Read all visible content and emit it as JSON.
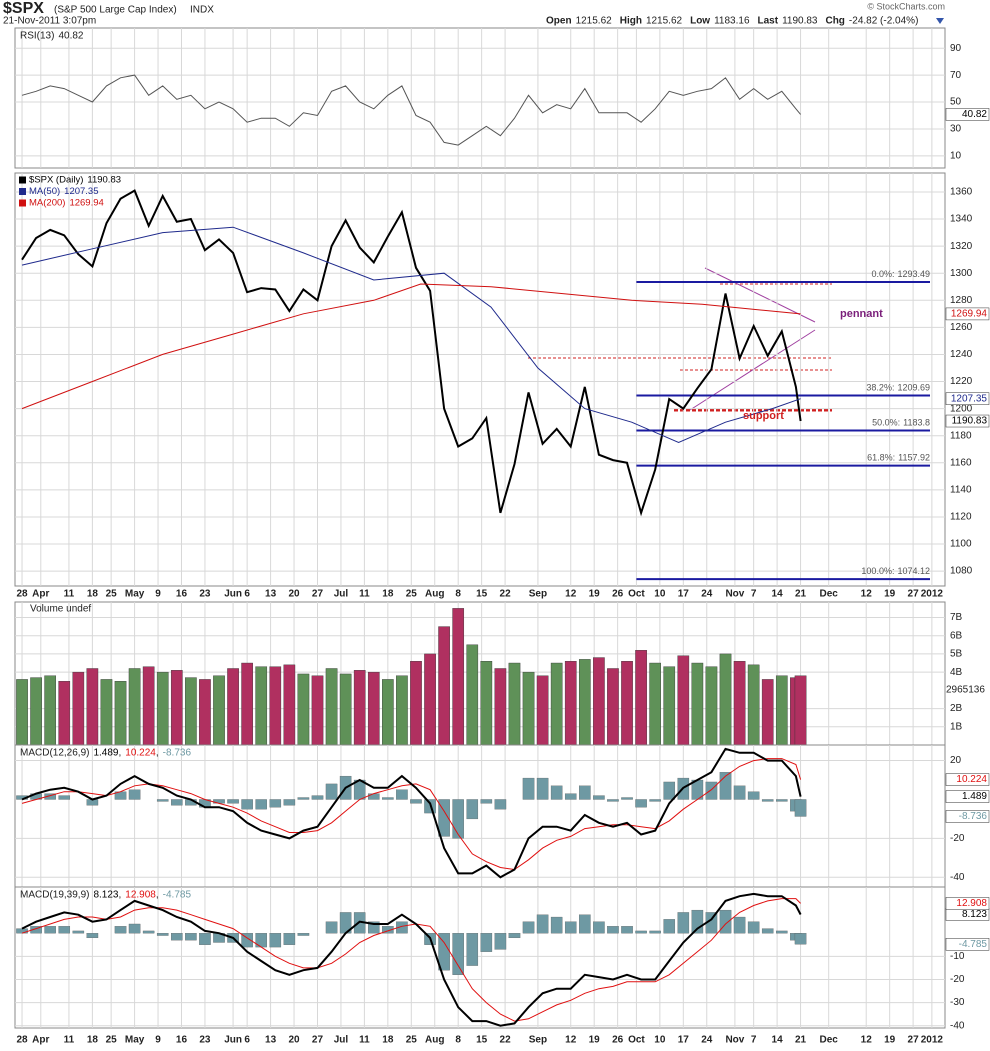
{
  "header": {
    "symbol": "$SPX",
    "name": "(S&P 500 Large Cap Index)",
    "exchange": "INDX",
    "date": "21-Nov-2011 3:07pm",
    "watermark": "© StockCharts.com",
    "quote": [
      {
        "label": "Open",
        "value": 1215.62
      },
      {
        "label": "High",
        "value": 1215.62
      },
      {
        "label": "Low",
        "value": 1183.16
      },
      {
        "label": "Last",
        "value": 1190.83
      },
      {
        "label": "Chg",
        "value": "-24.82 (-2.04%)"
      }
    ]
  },
  "chart_data": {
    "type": "stock",
    "xlim": [
      -1.5,
      196.8
    ],
    "xticks": [
      {
        "value": 0,
        "label": "28"
      },
      {
        "value": 4,
        "label": "Apr"
      },
      {
        "value": 10,
        "label": "11"
      },
      {
        "value": 15,
        "label": "18"
      },
      {
        "value": 19,
        "label": "25"
      },
      {
        "value": 24,
        "label": "May"
      },
      {
        "value": 29,
        "label": "9"
      },
      {
        "value": 34,
        "label": "16"
      },
      {
        "value": 39,
        "label": "23"
      },
      {
        "value": 45,
        "label": "Jun"
      },
      {
        "value": 48,
        "label": "6"
      },
      {
        "value": 53,
        "label": "13"
      },
      {
        "value": 58,
        "label": "20"
      },
      {
        "value": 63,
        "label": "27"
      },
      {
        "value": 68,
        "label": "Jul"
      },
      {
        "value": 73,
        "label": "11"
      },
      {
        "value": 78,
        "label": "18"
      },
      {
        "value": 83,
        "label": "25"
      },
      {
        "value": 88,
        "label": "Aug"
      },
      {
        "value": 93,
        "label": "8"
      },
      {
        "value": 98,
        "label": "15"
      },
      {
        "value": 103,
        "label": "22"
      },
      {
        "value": 110,
        "label": "Sep"
      },
      {
        "value": 117,
        "label": "12"
      },
      {
        "value": 122,
        "label": "19"
      },
      {
        "value": 127,
        "label": "26"
      },
      {
        "value": 131,
        "label": "Oct"
      },
      {
        "value": 136,
        "label": "10"
      },
      {
        "value": 141,
        "label": "17"
      },
      {
        "value": 146,
        "label": "24"
      },
      {
        "value": 152,
        "label": "Nov"
      },
      {
        "value": 156,
        "label": "7"
      },
      {
        "value": 161,
        "label": "14"
      },
      {
        "value": 166,
        "label": "21"
      },
      {
        "value": 172,
        "label": "Dec"
      },
      {
        "value": 180,
        "label": "12"
      },
      {
        "value": 185,
        "label": "19"
      },
      {
        "value": 190,
        "label": "27"
      },
      {
        "value": 194,
        "label": "2012"
      }
    ],
    "x": [
      0,
      3,
      6,
      9,
      12,
      15,
      18,
      21,
      24,
      27,
      30,
      33,
      36,
      39,
      42,
      45,
      48,
      51,
      54,
      57,
      60,
      63,
      66,
      69,
      72,
      75,
      78,
      81,
      84,
      87,
      90,
      93,
      96,
      99,
      102,
      105,
      108,
      111,
      114,
      117,
      120,
      123,
      126,
      129,
      132,
      135,
      138,
      141,
      144,
      147,
      150,
      153,
      156,
      159,
      162,
      165,
      166
    ],
    "panels": [
      {
        "type": "line",
        "legend": "RSI(13)",
        "ylim": [
          1,
          105
        ],
        "yticks": [
          10,
          30,
          50,
          70,
          90
        ],
        "series": [
          {
            "color": "#555",
            "values": [
              55,
              58,
              62,
              60,
              55,
              50,
              62,
              68,
              70,
              55,
              62,
              52,
              55,
              45,
              50,
              45,
              35,
              38,
              38,
              32,
              42,
              40,
              58,
              62,
              50,
              45,
              55,
              62,
              40,
              35,
              20,
              18,
              25,
              32,
              25,
              38,
              55,
              42,
              48,
              45,
              60,
              42,
              42,
              42,
              35,
              45,
              58,
              55,
              58,
              60,
              68,
              52,
              60,
              52,
              58,
              45,
              40.82
            ]
          }
        ]
      },
      {
        "type": "line",
        "ylim": [
          1069,
          1374
        ],
        "yticks": [
          1080,
          1100,
          1120,
          1140,
          1160,
          1180,
          1200,
          1220,
          1240,
          1260,
          1280,
          1300,
          1320,
          1340,
          1360
        ],
        "series": [
          {
            "name": "$SPX (Daily)",
            "color": "#000000",
            "values": [
              1310,
              1326,
              1332,
              1328,
              1314,
              1305,
              1337,
              1355,
              1361,
              1335,
              1357,
              1338,
              1340,
              1317,
              1325,
              1315,
              1286,
              1289,
              1288,
              1272,
              1288,
              1280,
              1320,
              1339,
              1319,
              1308,
              1327,
              1345,
              1304,
              1287,
              1200,
              1172,
              1178,
              1193,
              1123,
              1159,
              1212,
              1174,
              1185,
              1172,
              1216,
              1166,
              1162,
              1160,
              1123,
              1155,
              1207,
              1200,
              1215,
              1229,
              1285,
              1237,
              1261,
              1239,
              1257,
              1216,
              1190.83
            ]
          },
          {
            "name": "MA(50)",
            "color": "#1f2a8c",
            "x": [
              0,
              15,
              30,
              45,
              60,
              75,
              90,
              100,
              110,
              120,
              130,
              140,
              150,
              160,
              166
            ],
            "values": [
              1306,
              1318,
              1330,
              1334,
              1315,
              1295,
              1300,
              1275,
              1230,
              1200,
              1190,
              1175,
              1190,
              1200,
              1207.35
            ]
          },
          {
            "name": "MA(200)",
            "color": "#d01010",
            "x": [
              0,
              15,
              30,
              45,
              60,
              75,
              85,
              100,
              115,
              130,
              145,
              160,
              166
            ],
            "values": [
              1200,
              1220,
              1240,
              1255,
              1270,
              1280,
              1292,
              1290,
              1285,
              1280,
              1277,
              1272,
              1269.94
            ]
          }
        ],
        "fib": [
          {
            "label": "0.0%:",
            "value": 1293.49
          },
          {
            "label": "38.2%:",
            "value": 1209.69
          },
          {
            "label": "50.0%:",
            "value": 1183.8
          },
          {
            "label": "61.8%:",
            "value": 1157.92
          },
          {
            "label": "100.0%:",
            "value": 1074.12
          }
        ],
        "annotations": [
          "pennant",
          "support"
        ]
      },
      {
        "type": "bar",
        "legend": "Volume undef",
        "last_label": "2965136",
        "up_color": "#5f9158",
        "down_color": "#b03060",
        "ylim": [
          0,
          7.85
        ],
        "yticks": [
          {
            "value": 1,
            "label": "1B"
          },
          {
            "value": 2,
            "label": "2B"
          },
          {
            "value": 4,
            "label": "4B"
          },
          {
            "value": 5,
            "label": "5B"
          },
          {
            "value": 6,
            "label": "6B"
          },
          {
            "value": 7,
            "label": "7B"
          }
        ],
        "values": [
          3.6,
          3.7,
          3.8,
          3.5,
          4.0,
          4.2,
          3.6,
          3.5,
          4.2,
          4.3,
          4.0,
          4.1,
          3.7,
          3.6,
          3.8,
          4.2,
          4.5,
          4.3,
          4.3,
          4.4,
          3.9,
          3.8,
          4.2,
          3.9,
          4.1,
          4.0,
          3.6,
          3.8,
          4.6,
          5.0,
          6.5,
          7.5,
          5.5,
          4.6,
          4.2,
          4.5,
          4.0,
          3.8,
          4.5,
          4.6,
          4.7,
          4.8,
          4.2,
          4.6,
          5.2,
          4.5,
          4.3,
          4.9,
          4.5,
          4.3,
          5.0,
          4.6,
          4.4,
          3.6,
          3.8,
          3.7,
          3.8
        ]
      },
      {
        "type": "macd",
        "legend": "MACD(12,26,9)",
        "separator": ",",
        "ylim": [
          -45,
          28
        ],
        "yticks": [
          20,
          -20,
          -40
        ],
        "series": [
          {
            "color": "#000000",
            "values": [
              0,
              3,
              5,
              6,
              4,
              0,
              2,
              8,
              12,
              8,
              6,
              2,
              0,
              -4,
              -4,
              -6,
              -12,
              -16,
              -18,
              -20,
              -16,
              -14,
              -4,
              6,
              10,
              6,
              6,
              12,
              6,
              -2,
              -25,
              -38,
              -38,
              -34,
              -40,
              -36,
              -20,
              -14,
              -14,
              -16,
              -8,
              -12,
              -14,
              -12,
              -18,
              -16,
              -2,
              6,
              10,
              14,
              26,
              24,
              24,
              20,
              20,
              12,
              1.489
            ]
          },
          {
            "color": "#e01010",
            "values": [
              -2,
              0,
              2,
              4,
              4,
              3,
              2,
              4,
              7,
              8,
              7,
              5,
              3,
              0,
              -2,
              -4,
              -7,
              -11,
              -14,
              -17,
              -17,
              -16,
              -12,
              -6,
              0,
              3,
              5,
              7,
              8,
              5,
              -6,
              -18,
              -28,
              -32,
              -35,
              -36,
              -31,
              -25,
              -21,
              -19,
              -15,
              -14,
              -13,
              -13,
              -14,
              -15,
              -11,
              -5,
              0,
              5,
              12,
              17,
              20,
              21,
              21,
              18,
              10.224
            ]
          },
          {
            "color": "#6e99a3",
            "values": [
              2,
              3,
              3,
              2,
              0,
              -3,
              0,
              4,
              5,
              0,
              -1,
              -3,
              -3,
              -4,
              -2,
              -2,
              -5,
              -5,
              -4,
              -3,
              1,
              2,
              8,
              12,
              10,
              3,
              1,
              5,
              -2,
              -7,
              -19,
              -20,
              -10,
              -2,
              -5,
              0,
              11,
              11,
              7,
              3,
              7,
              2,
              -1,
              1,
              -4,
              -1,
              9,
              11,
              10,
              9,
              14,
              7,
              4,
              -1,
              -1,
              -6,
              -8.736
            ]
          }
        ]
      },
      {
        "type": "macd",
        "legend": "MACD(19,39,9)",
        "separator": ",",
        "ylim": [
          -41,
          20
        ],
        "yticks": [
          -10,
          -20,
          -30,
          -40
        ],
        "series": [
          {
            "color": "#000000",
            "values": [
              2,
              5,
              7,
              9,
              8,
              5,
              6,
              10,
              14,
              12,
              10,
              7,
              5,
              1,
              0,
              -2,
              -8,
              -12,
              -16,
              -18,
              -16,
              -15,
              -8,
              0,
              5,
              4,
              4,
              8,
              4,
              -2,
              -20,
              -32,
              -38,
              -38,
              -40,
              -39,
              -32,
              -26,
              -24,
              -24,
              -18,
              -19,
              -20,
              -18,
              -20,
              -20,
              -12,
              -4,
              2,
              6,
              14,
              16,
              17,
              16,
              16,
              12,
              8.123
            ]
          },
          {
            "color": "#e01010",
            "values": [
              0,
              2,
              4,
              6,
              7,
              7,
              6,
              7,
              10,
              11,
              11,
              10,
              8,
              6,
              4,
              2,
              -2,
              -6,
              -10,
              -13,
              -15,
              -15,
              -13,
              -9,
              -4,
              -1,
              1,
              3,
              4,
              3,
              -4,
              -14,
              -24,
              -30,
              -35,
              -38,
              -37,
              -34,
              -31,
              -29,
              -26,
              -24,
              -23,
              -21,
              -21,
              -21,
              -18,
              -13,
              -8,
              -3,
              4,
              9,
              12,
              14,
              15,
              15,
              12.908
            ]
          },
          {
            "color": "#6e99a3",
            "values": [
              2,
              3,
              3,
              3,
              1,
              -2,
              0,
              3,
              4,
              1,
              -1,
              -3,
              -3,
              -5,
              -4,
              -4,
              -6,
              -6,
              -6,
              -5,
              -1,
              0,
              5,
              9,
              9,
              5,
              3,
              5,
              0,
              -5,
              -16,
              -18,
              -14,
              -8,
              -7,
              -2,
              5,
              8,
              7,
              5,
              8,
              5,
              3,
              3,
              1,
              1,
              6,
              9,
              10,
              9,
              10,
              7,
              5,
              2,
              1,
              -3,
              -4.785
            ]
          }
        ]
      }
    ]
  }
}
